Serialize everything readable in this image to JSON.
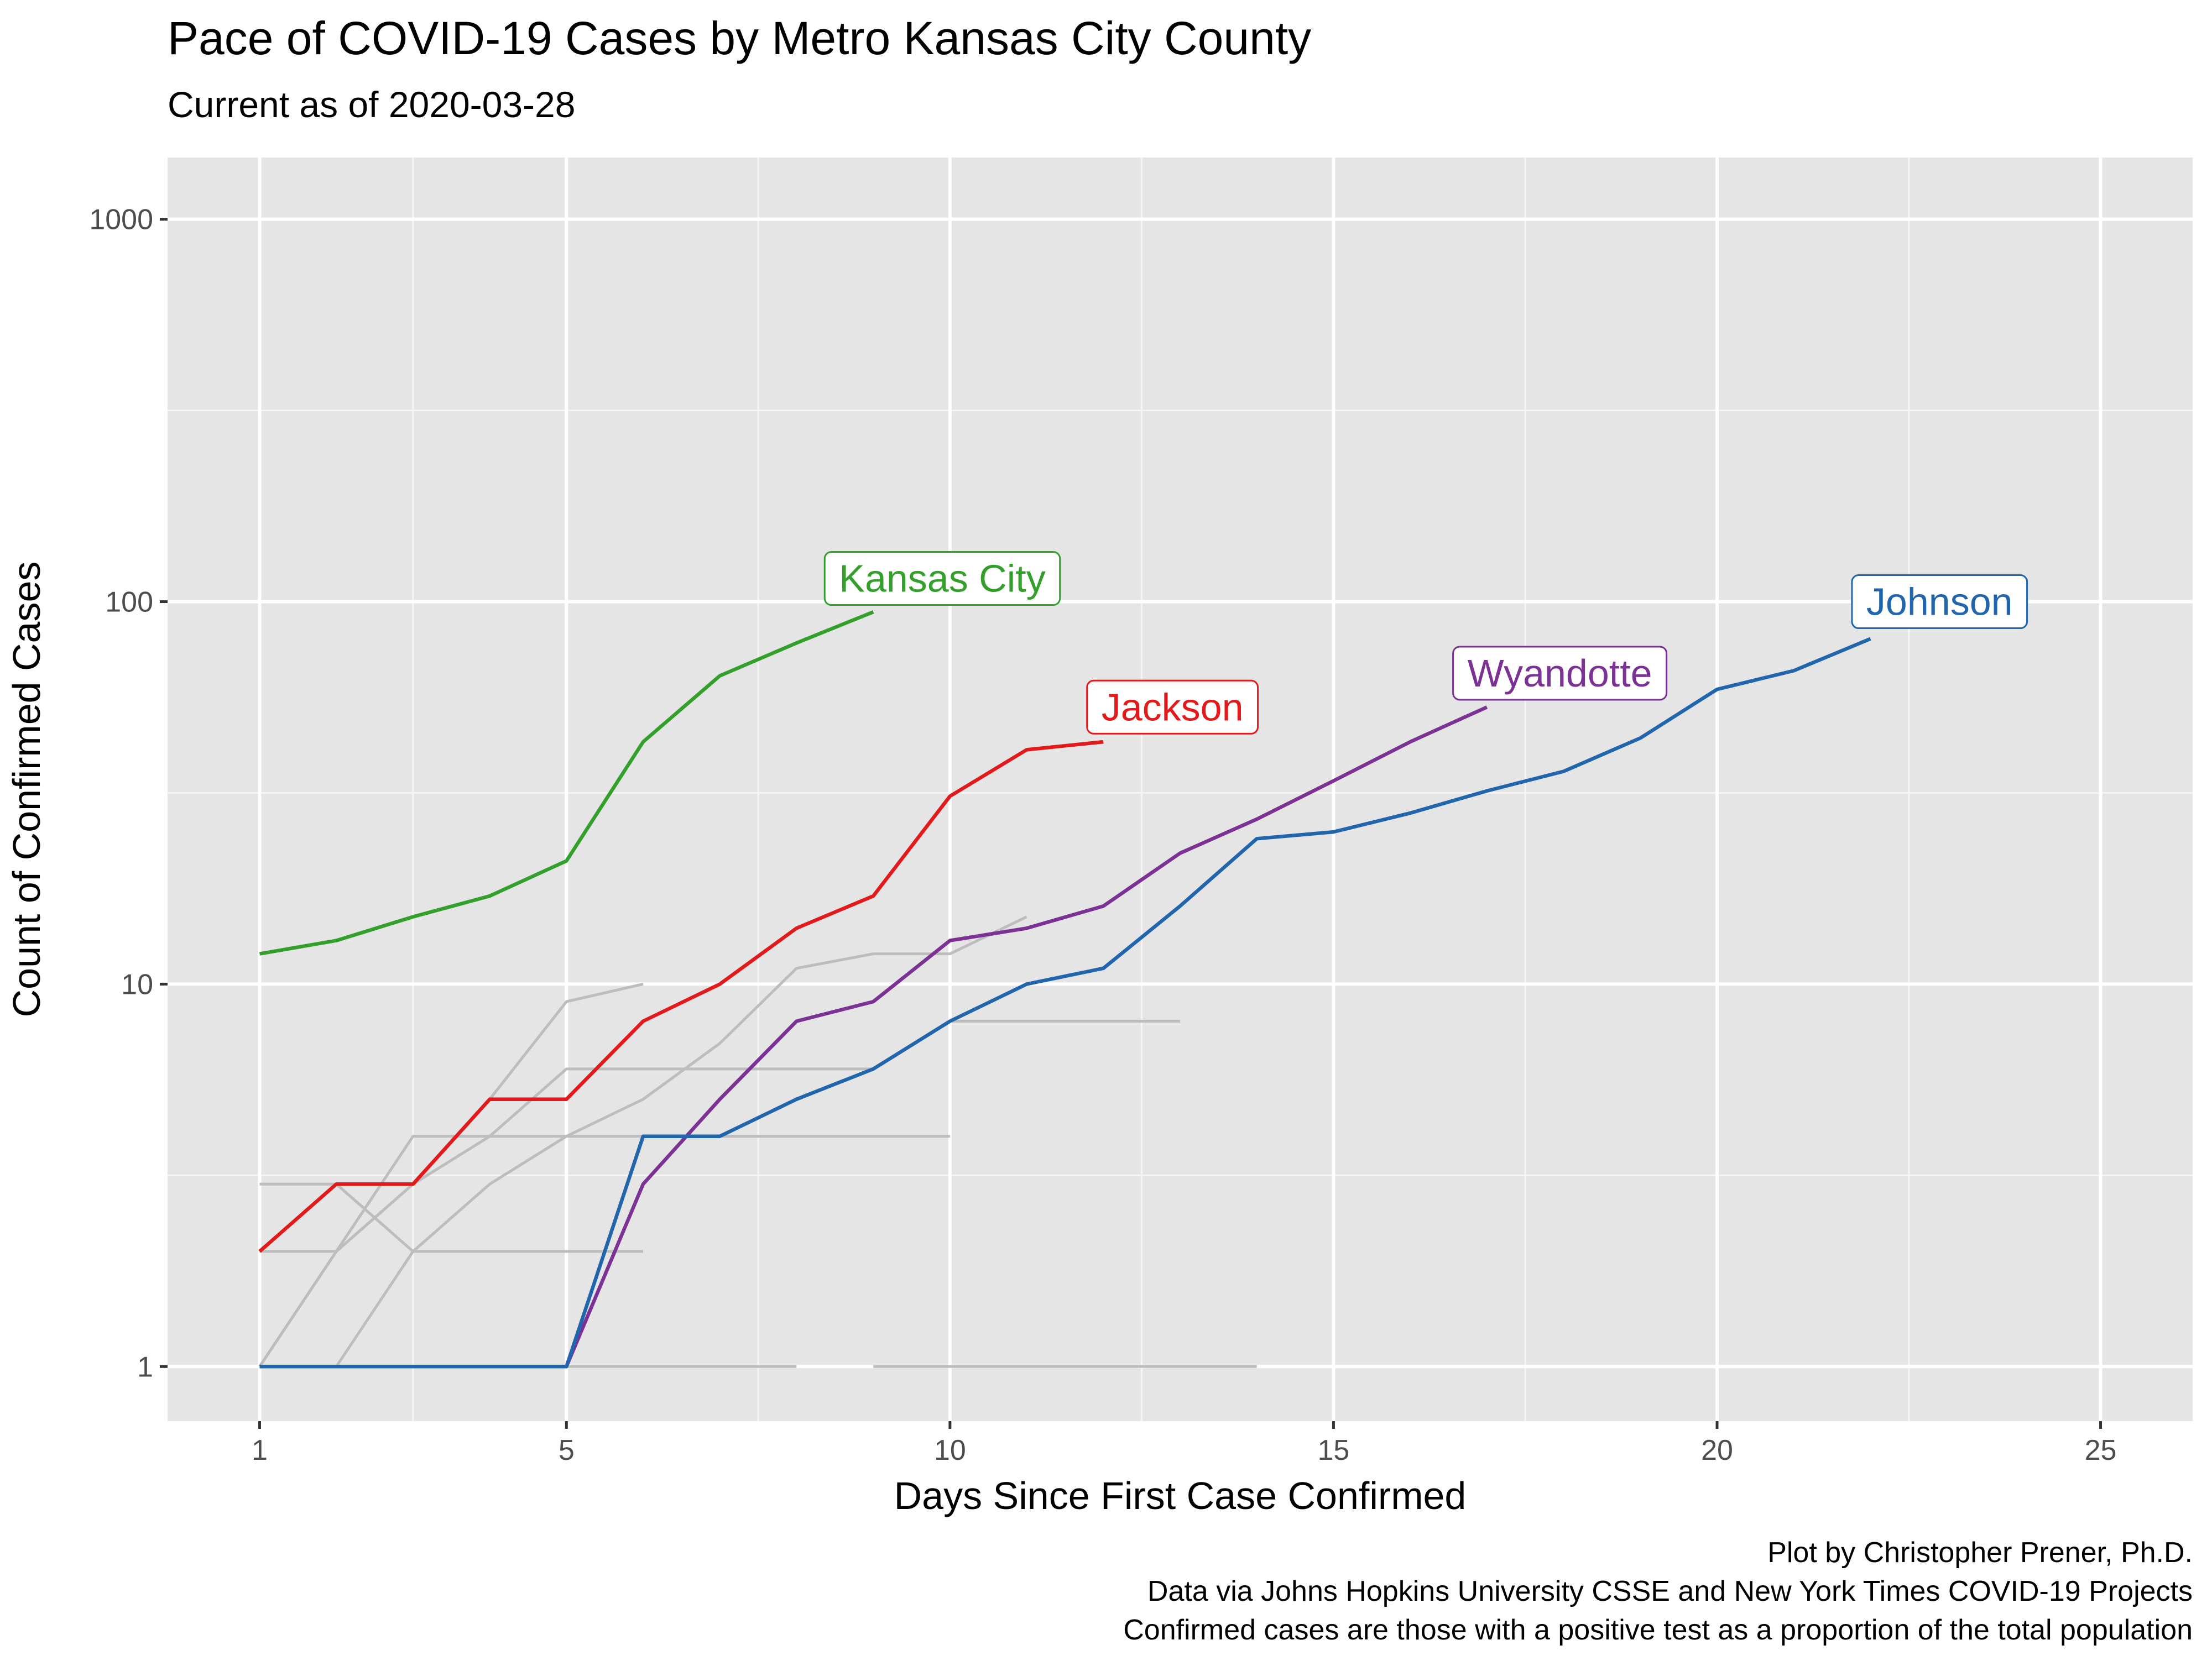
{
  "chart_data": {
    "type": "line",
    "title": "Pace of COVID-19 Cases by Metro Kansas City County",
    "subtitle": "Current as of 2020-03-28",
    "xlabel": "Days Since First Case Confirmed",
    "ylabel": "Count of Confirmed Cases",
    "x_scale": "linear",
    "y_scale": "log10",
    "xlim": [
      -0.2,
      26.2
    ],
    "ylim": [
      0.72,
      1450
    ],
    "x_ticks": [
      1,
      5,
      10,
      15,
      20,
      25
    ],
    "x_tick_labels": [
      "1",
      "5",
      "10",
      "15",
      "20",
      "25"
    ],
    "y_ticks": [
      1,
      10,
      100,
      1000
    ],
    "y_tick_labels": [
      "1",
      "10",
      "100",
      "1000"
    ],
    "grid": true,
    "legend": "none",
    "caption": [
      "Plot by Christopher Prener, Ph.D.",
      "Data via Johns Hopkins University CSSE and New York Times COVID-19 Projects",
      "Confirmed cases are those with a positive test as a proportion of the total population"
    ],
    "series": [
      {
        "name": "",
        "color": "#bdbdbd",
        "x": [
          1,
          2,
          3,
          4,
          5,
          6
        ],
        "y": [
          1,
          2,
          3,
          5,
          9,
          10
        ]
      },
      {
        "name": "",
        "color": "#bdbdbd",
        "x": [
          1,
          2,
          3,
          4,
          5,
          6,
          7,
          8,
          9
        ],
        "y": [
          1,
          2,
          3,
          4,
          6,
          6,
          6,
          6,
          6
        ]
      },
      {
        "name": "",
        "color": "#bdbdbd",
        "x": [
          1,
          2,
          3,
          4,
          5,
          6,
          7,
          8,
          9,
          10,
          11
        ],
        "y": [
          1,
          1,
          2,
          3,
          4,
          5,
          7,
          11,
          12,
          12,
          15
        ]
      },
      {
        "name": "",
        "color": "#bdbdbd",
        "x": [
          1,
          2,
          3,
          4,
          5,
          6,
          7,
          8,
          9,
          10
        ],
        "y": [
          2,
          2,
          4,
          4,
          4,
          4,
          4,
          4,
          4,
          4
        ]
      },
      {
        "name": "",
        "color": "#bdbdbd",
        "x": [
          1,
          2,
          3,
          4,
          5,
          6
        ],
        "y": [
          3,
          3,
          2,
          2,
          2,
          2
        ]
      },
      {
        "name": "",
        "color": "#bdbdbd",
        "x": [
          10,
          11,
          12,
          13
        ],
        "y": [
          8,
          8,
          8,
          8
        ]
      },
      {
        "name": "",
        "color": "#bdbdbd",
        "x": [
          1,
          2,
          3,
          4,
          5,
          6,
          7,
          8
        ],
        "y": [
          1,
          1,
          1,
          1,
          1,
          1,
          1,
          1
        ]
      },
      {
        "name": "",
        "color": "#bdbdbd",
        "x": [
          9,
          10,
          11,
          12,
          13,
          14
        ],
        "y": [
          1,
          1,
          1,
          1,
          1,
          1
        ]
      },
      {
        "name": "Kansas City",
        "color": "#33a02c",
        "x": [
          1,
          2,
          3,
          4,
          5,
          6,
          7,
          8,
          9
        ],
        "y": [
          12,
          13,
          15,
          17,
          21,
          43,
          64,
          78,
          94
        ],
        "label_at": [
          9.9,
          115
        ]
      },
      {
        "name": "Jackson",
        "color": "#e31a1c",
        "x": [
          1,
          2,
          3,
          4,
          5,
          6,
          7,
          8,
          9,
          10,
          11,
          12
        ],
        "y": [
          2,
          3,
          3,
          5,
          5,
          8,
          10,
          14,
          17,
          31,
          41,
          43
        ],
        "label_at": [
          12.9,
          53
        ]
      },
      {
        "name": "Wyandotte",
        "color": "#7b3294",
        "x": [
          1,
          2,
          3,
          4,
          5,
          6,
          7,
          8,
          9,
          10,
          11,
          12,
          13,
          14,
          15,
          16,
          17
        ],
        "y": [
          1,
          1,
          1,
          1,
          1,
          3,
          5,
          8,
          9,
          13,
          14,
          16,
          22,
          27,
          34,
          43,
          53
        ],
        "label_at": [
          17.95,
          65
        ]
      },
      {
        "name": "Johnson",
        "color": "#2166ac",
        "x": [
          1,
          2,
          3,
          4,
          5,
          6,
          7,
          8,
          9,
          10,
          11,
          12,
          13,
          14,
          15,
          16,
          17,
          18,
          19,
          20,
          21,
          22
        ],
        "y": [
          1,
          1,
          1,
          1,
          1,
          4,
          4,
          5,
          6,
          8,
          10,
          11,
          16,
          24,
          25,
          28,
          32,
          36,
          44,
          59,
          66,
          80
        ],
        "label_at": [
          22.9,
          100
        ]
      }
    ]
  }
}
